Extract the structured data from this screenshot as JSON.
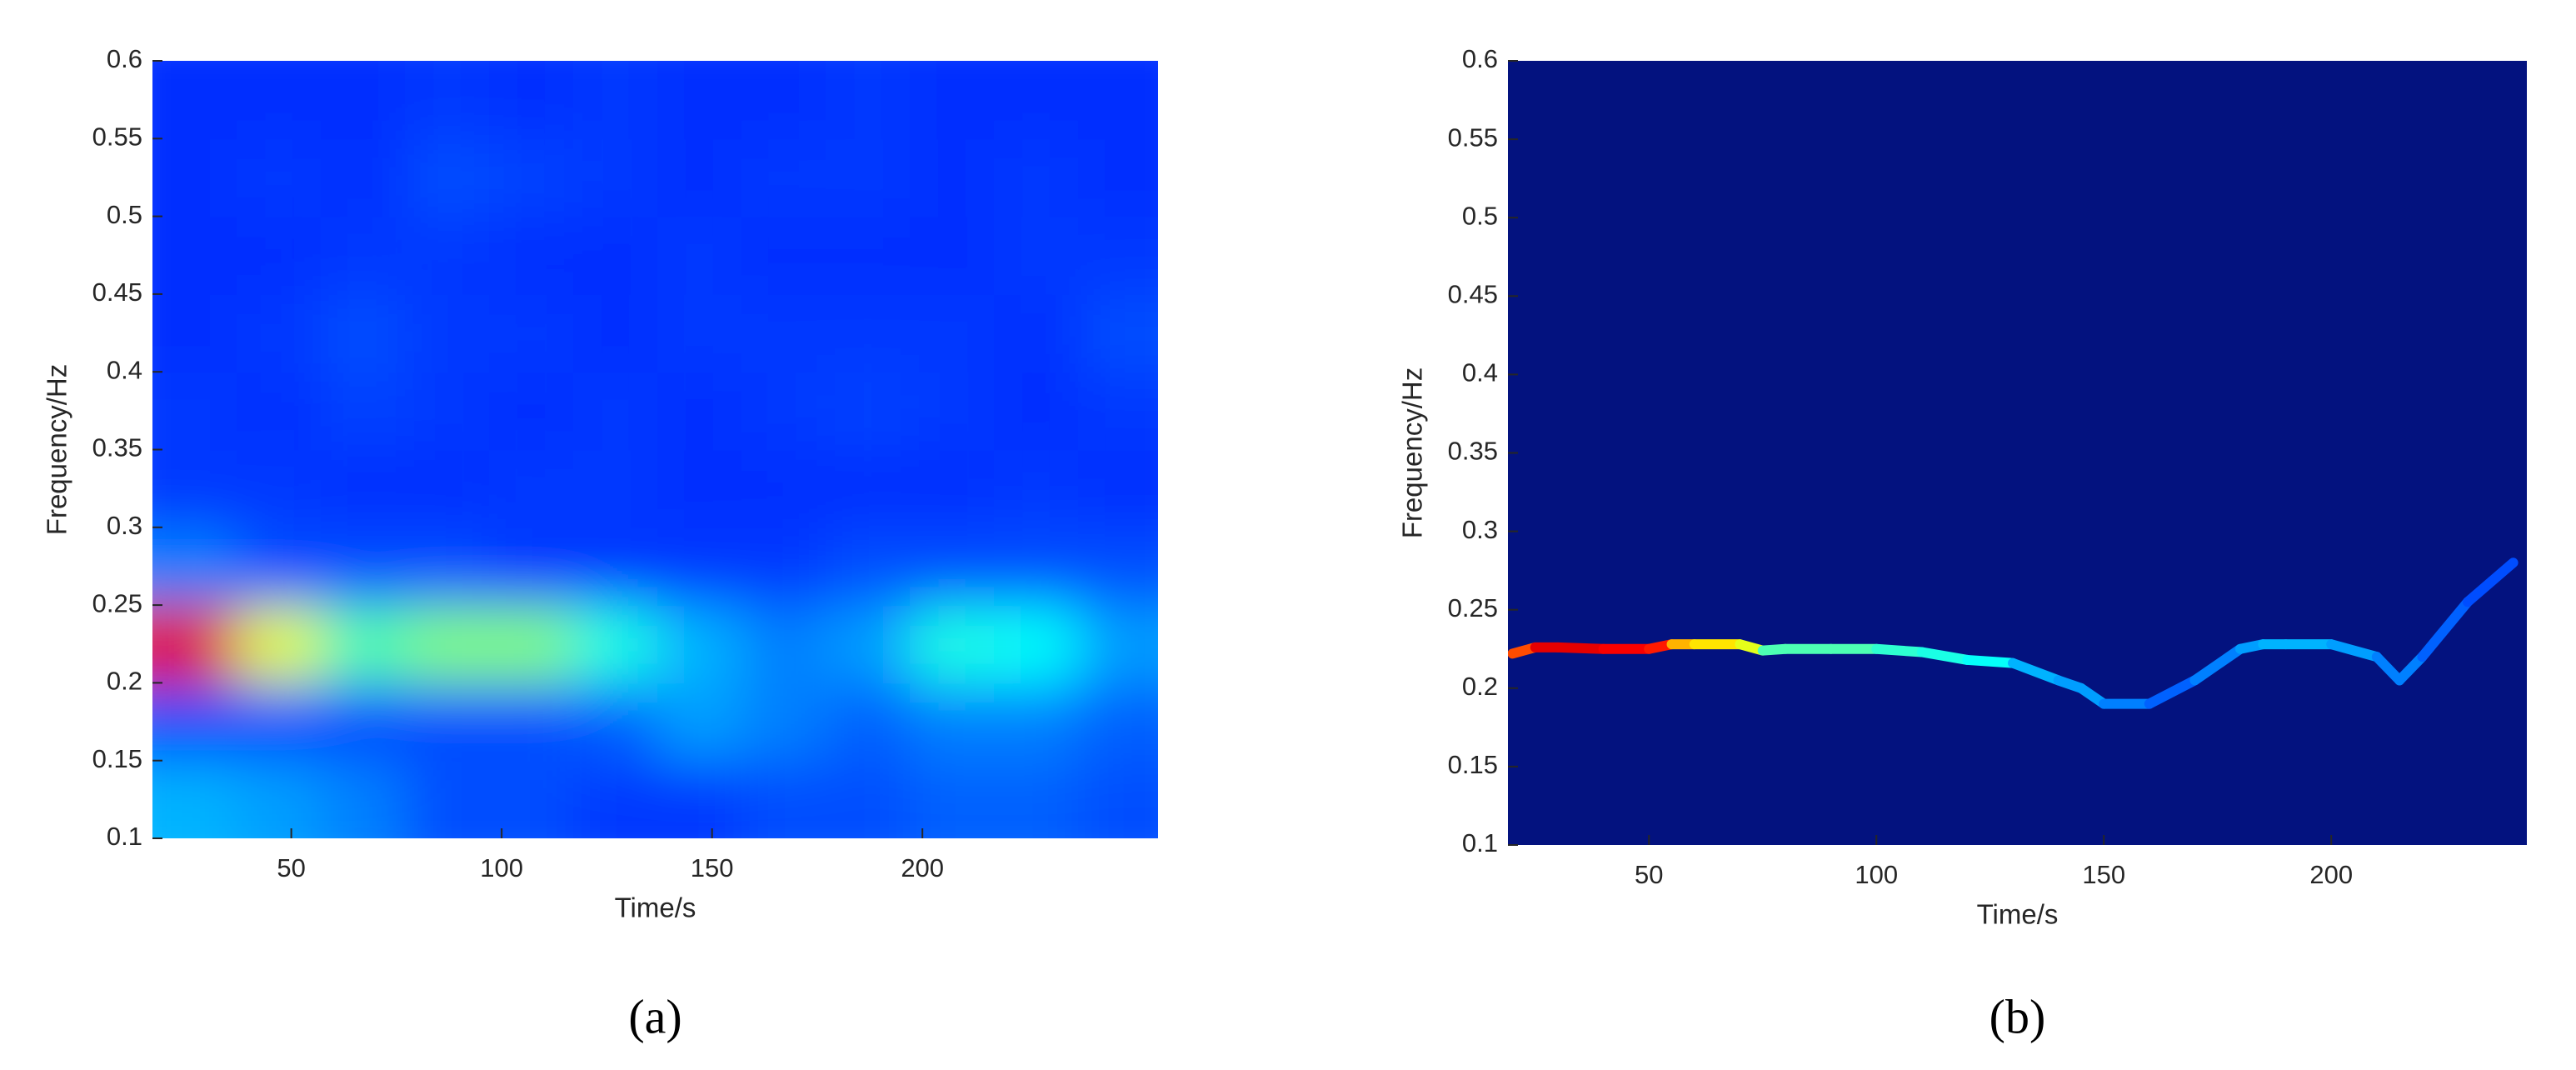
{
  "chart_data": [
    {
      "type": "heatmap",
      "caption": "(a)",
      "xlabel": "Time/s",
      "ylabel": "Frequency/Hz",
      "colormap": "jet",
      "xlim": [
        17,
        256
      ],
      "ylim": [
        0.1,
        0.6
      ],
      "xticks": [
        50,
        100,
        150,
        200
      ],
      "yticks": [
        0.1,
        0.15,
        0.2,
        0.25,
        0.3,
        0.35,
        0.4,
        0.45,
        0.5,
        0.55,
        0.6
      ],
      "x": [
        27,
        47,
        67,
        87,
        107,
        127,
        147,
        167,
        187,
        207,
        227,
        247
      ],
      "y": [
        0.125,
        0.175,
        0.225,
        0.275,
        0.325,
        0.375,
        0.425,
        0.475,
        0.525,
        0.575
      ],
      "z": [
        [
          0.3,
          0.28,
          0.25,
          0.2,
          0.2,
          0.18,
          0.18,
          0.2,
          0.2,
          0.22,
          0.22,
          0.2
        ],
        [
          0.2,
          0.2,
          0.2,
          0.2,
          0.2,
          0.22,
          0.28,
          0.25,
          0.22,
          0.25,
          0.25,
          0.22
        ],
        [
          0.9,
          0.6,
          0.45,
          0.5,
          0.5,
          0.4,
          0.3,
          0.25,
          0.28,
          0.4,
          0.38,
          0.28
        ],
        [
          0.25,
          0.2,
          0.2,
          0.2,
          0.18,
          0.18,
          0.18,
          0.18,
          0.2,
          0.2,
          0.2,
          0.2
        ],
        [
          0.18,
          0.18,
          0.17,
          0.17,
          0.18,
          0.18,
          0.17,
          0.17,
          0.17,
          0.17,
          0.18,
          0.17
        ],
        [
          0.18,
          0.17,
          0.19,
          0.18,
          0.17,
          0.18,
          0.17,
          0.18,
          0.19,
          0.18,
          0.17,
          0.18
        ],
        [
          0.17,
          0.18,
          0.2,
          0.18,
          0.18,
          0.17,
          0.18,
          0.18,
          0.18,
          0.18,
          0.17,
          0.2
        ],
        [
          0.17,
          0.17,
          0.18,
          0.18,
          0.17,
          0.17,
          0.18,
          0.17,
          0.17,
          0.17,
          0.18,
          0.18
        ],
        [
          0.17,
          0.18,
          0.17,
          0.2,
          0.19,
          0.18,
          0.17,
          0.18,
          0.18,
          0.17,
          0.18,
          0.17
        ],
        [
          0.17,
          0.17,
          0.17,
          0.18,
          0.17,
          0.18,
          0.17,
          0.17,
          0.18,
          0.17,
          0.17,
          0.17
        ]
      ]
    },
    {
      "type": "ridge",
      "caption": "(b)",
      "xlabel": "Time/s",
      "ylabel": "Frequency/Hz",
      "colormap": "jet",
      "background": "#03127f",
      "xlim": [
        19,
        243
      ],
      "ylim": [
        0.1,
        0.6
      ],
      "xticks": [
        50,
        100,
        150,
        200
      ],
      "yticks": [
        0.1,
        0.15,
        0.2,
        0.25,
        0.3,
        0.35,
        0.4,
        0.45,
        0.5,
        0.55,
        0.6
      ],
      "ridge": {
        "x": [
          20,
          25,
          30,
          40,
          50,
          55,
          60,
          70,
          75,
          80,
          90,
          100,
          110,
          120,
          130,
          140,
          145,
          150,
          160,
          170,
          180,
          185,
          190,
          200,
          210,
          215,
          220,
          230,
          240
        ],
        "y": [
          0.222,
          0.226,
          0.226,
          0.225,
          0.225,
          0.228,
          0.228,
          0.228,
          0.224,
          0.225,
          0.225,
          0.225,
          0.223,
          0.218,
          0.216,
          0.205,
          0.2,
          0.19,
          0.19,
          0.205,
          0.225,
          0.228,
          0.228,
          0.228,
          0.22,
          0.205,
          0.22,
          0.255,
          0.28
        ],
        "intensity": [
          0.8,
          0.9,
          0.9,
          0.88,
          0.85,
          0.7,
          0.65,
          0.6,
          0.45,
          0.45,
          0.45,
          0.42,
          0.4,
          0.38,
          0.3,
          0.28,
          0.28,
          0.25,
          0.22,
          0.25,
          0.28,
          0.3,
          0.3,
          0.28,
          0.25,
          0.25,
          0.22,
          0.2,
          0.2
        ]
      }
    }
  ]
}
